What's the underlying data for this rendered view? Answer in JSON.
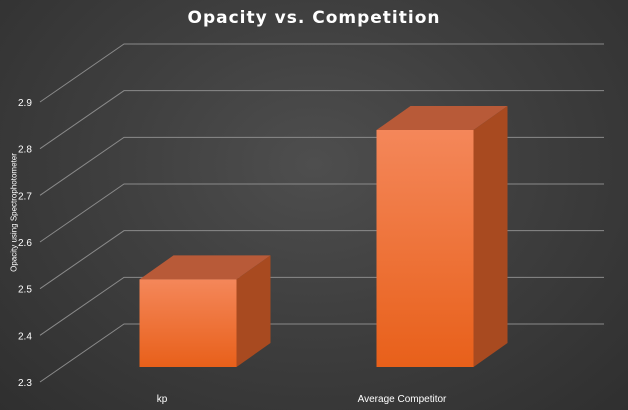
{
  "chart_data": {
    "type": "bar",
    "title": "Opacity vs. Competition",
    "xlabel": "",
    "ylabel": "Opacity using Spectrophotometer",
    "categories": [
      "kp",
      "Average Competitor"
    ],
    "values": [
      2.52,
      2.84
    ],
    "ylim": [
      2.3,
      2.9
    ],
    "yticks": [
      "2.3",
      "2.4",
      "2.5",
      "2.6",
      "2.7",
      "2.8",
      "2.9"
    ],
    "grid": true,
    "style": "3d-column",
    "colors": {
      "bar_front": "#f07030",
      "bar_top": "#b85a38",
      "bar_side": "#a84a20",
      "gridline": "#8a8a8a",
      "background": "#3f3f3f"
    }
  }
}
